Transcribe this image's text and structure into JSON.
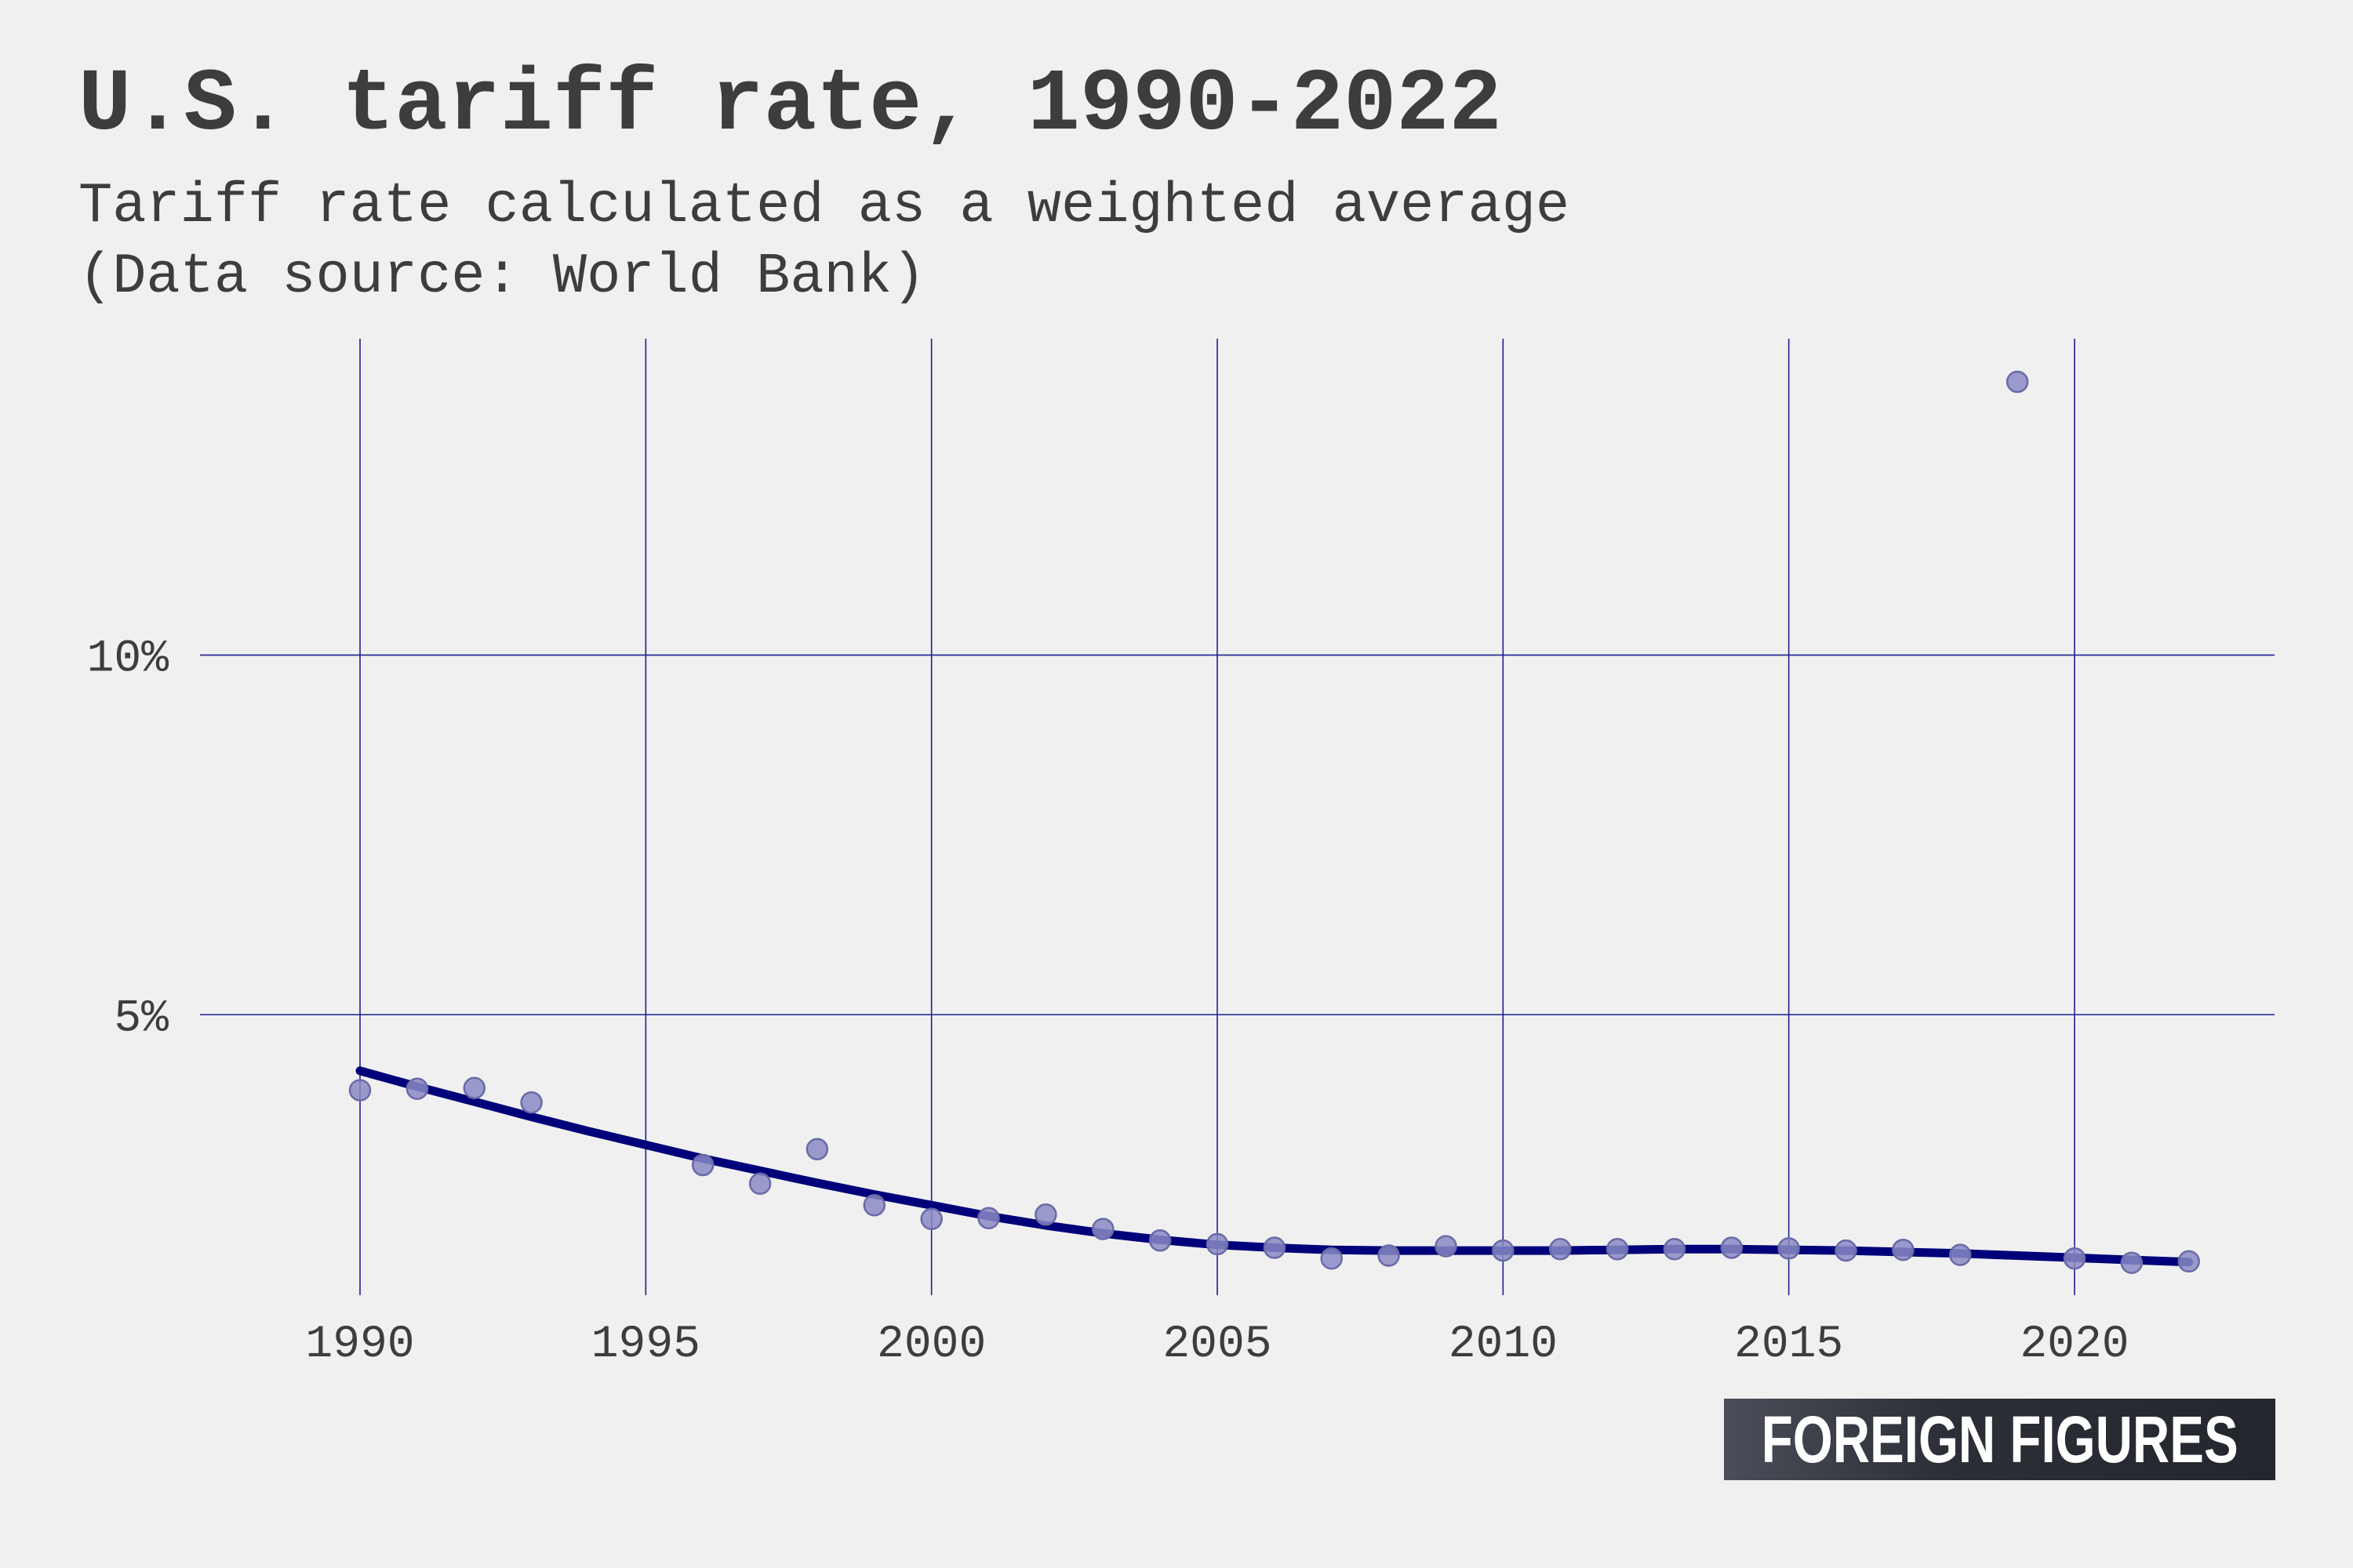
{
  "title": "U.S. tariff rate, 1990-2022",
  "subtitle_lines": [
    "Tariff rate calculated as a weighted average",
    "(Data source: World Bank)"
  ],
  "logo_text": "FOREIGN FIGURES",
  "colors": {
    "background": "#f0f0f0",
    "text": "#3d3d3d",
    "grid": "#1f1f8f",
    "points": "#8a8ac4",
    "point_stroke": "#6a6aa8",
    "trend": "#00007a"
  },
  "chart_data": {
    "type": "scatter",
    "title": "U.S. tariff rate, 1990-2022",
    "xlabel": "",
    "ylabel": "",
    "xlim": [
      1987.2,
      2023.5
    ],
    "ylim": [
      1.1,
      14.4
    ],
    "x_ticks": [
      1990,
      1995,
      2000,
      2005,
      2010,
      2015,
      2020
    ],
    "y_ticks": [
      5,
      10
    ],
    "y_tick_labels": [
      "5%",
      "10%"
    ],
    "grid": true,
    "legend": "none",
    "series": [
      {
        "type": "scatter",
        "x": [
          1990,
          1991,
          1992,
          1993,
          1996,
          1997,
          1998,
          1999,
          2000,
          2001,
          2002,
          2003,
          2004,
          2005,
          2006,
          2007,
          2008,
          2009,
          2010,
          2011,
          2012,
          2013,
          2014,
          2015,
          2016,
          2017,
          2018,
          2019,
          2020,
          2021,
          2022
        ],
        "y": [
          3.95,
          3.97,
          3.98,
          3.78,
          2.91,
          2.65,
          3.13,
          2.35,
          2.16,
          2.17,
          2.22,
          2.02,
          1.86,
          1.81,
          1.76,
          1.61,
          1.65,
          1.78,
          1.72,
          1.74,
          1.74,
          1.74,
          1.76,
          1.75,
          1.72,
          1.73,
          1.66,
          13.8,
          1.61,
          1.55,
          1.57
        ]
      },
      {
        "type": "line",
        "x": [
          1990,
          1991,
          1992,
          1993,
          1994,
          1995,
          1996,
          1997,
          1998,
          1999,
          2000,
          2001,
          2002,
          2003,
          2004,
          2005,
          2006,
          2007,
          2008,
          2009,
          2010,
          2011,
          2012,
          2013,
          2014,
          2015,
          2016,
          2017,
          2018,
          2019,
          2020,
          2021,
          2022
        ],
        "y": [
          4.22,
          4.0,
          3.79,
          3.58,
          3.38,
          3.19,
          3.0,
          2.83,
          2.66,
          2.5,
          2.35,
          2.2,
          2.07,
          1.96,
          1.87,
          1.8,
          1.76,
          1.73,
          1.72,
          1.72,
          1.72,
          1.72,
          1.73,
          1.74,
          1.74,
          1.73,
          1.72,
          1.7,
          1.68,
          1.65,
          1.62,
          1.59,
          1.56
        ]
      }
    ]
  }
}
